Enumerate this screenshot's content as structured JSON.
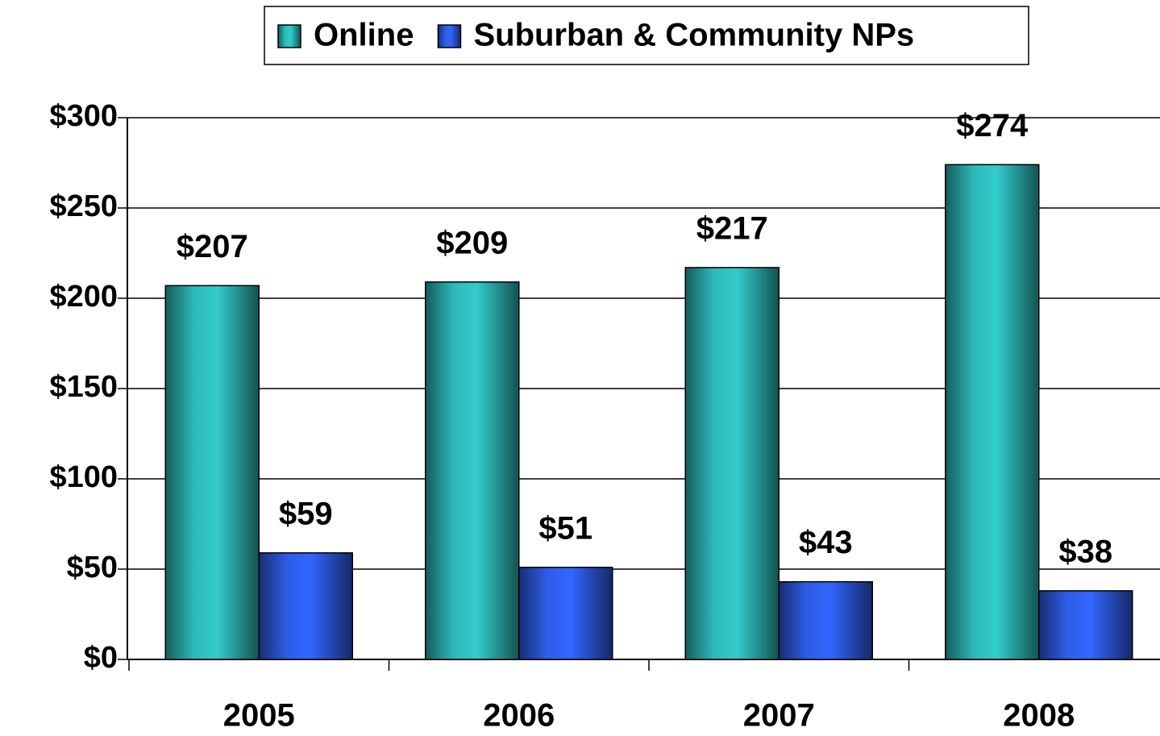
{
  "chart_data": {
    "type": "bar",
    "categories": [
      "2005",
      "2006",
      "2007",
      "2008"
    ],
    "series": [
      {
        "name": "Online",
        "color": "#33cccc",
        "values": [
          207,
          209,
          217,
          274
        ],
        "value_labels": [
          "$207",
          "$209",
          "$217",
          "$274"
        ]
      },
      {
        "name": "Suburban & Community NPs",
        "color": "#3366ff",
        "values": [
          59,
          51,
          43,
          38
        ],
        "value_labels": [
          "$59",
          "$51",
          "$43",
          "$38"
        ]
      }
    ],
    "ylim": [
      0,
      300
    ],
    "yticks": [
      {
        "value": 0,
        "label": "$0"
      },
      {
        "value": 50,
        "label": "$50"
      },
      {
        "value": 100,
        "label": "$100"
      },
      {
        "value": 150,
        "label": "$150"
      },
      {
        "value": 200,
        "label": "$200"
      },
      {
        "value": 250,
        "label": "$250"
      },
      {
        "value": 300,
        "label": "$300"
      }
    ],
    "grid": true,
    "legend": "top"
  }
}
